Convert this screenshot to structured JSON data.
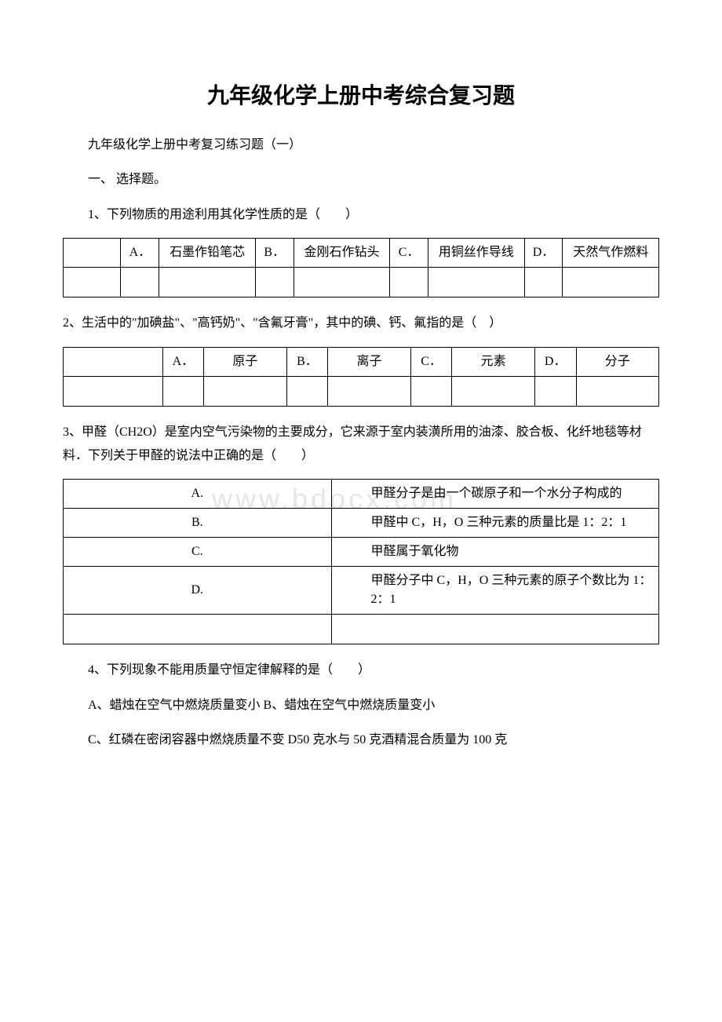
{
  "title": "九年级化学上册中考综合复习题",
  "subtitle": "九年级化学上册中考复习练习题（一）",
  "section1": "一、 选择题。",
  "q1": "1、下列物质的用途利用其化学性质的是（　　）",
  "q1_table": {
    "options": [
      {
        "label": "A．",
        "text": "石墨作铅笔芯"
      },
      {
        "label": "B．",
        "text": "金刚石作钻头"
      },
      {
        "label": "C．",
        "text": "用铜丝作导线"
      },
      {
        "label": "D．",
        "text": "天然气作燃料"
      }
    ]
  },
  "q2": "2、生活中的\"加碘盐\"、\"高钙奶\"、\"含氟牙膏\"，其中的碘、钙、氟指的是（　）",
  "q2_table": {
    "options": [
      {
        "label": "A．",
        "text": "原子"
      },
      {
        "label": "B．",
        "text": "离子"
      },
      {
        "label": "C．",
        "text": "元素"
      },
      {
        "label": "D．",
        "text": "分子"
      }
    ]
  },
  "q3": "3、甲醛（CH2O）是室内空气污染物的主要成分，它来源于室内装潢所用的油漆、胶合板、化纤地毯等材料．下列关于甲醛的说法中正确的是（　　）",
  "q3_table": {
    "rows": [
      {
        "label": "A.",
        "text": "甲醛分子是由一个碳原子和一个水分子构成的"
      },
      {
        "label": "B.",
        "text": "甲醛中 C，H，O 三种元素的质量比是 1：2：1"
      },
      {
        "label": "C.",
        "text": "甲醛属于氧化物"
      },
      {
        "label": "D.",
        "text": "甲醛分子中 C，H，O 三种元素的原子个数比为 1：2：1"
      }
    ]
  },
  "q4": "4、下列现象不能用质量守恒定律解释的是（　　）",
  "q4_a": "A、蜡烛在空气中燃烧质量变小 B、蜡烛在空气中燃烧质量变小",
  "q4_c": "C、红磷在密闭容器中燃烧质量不变 D50 克水与 50 克酒精混合质量为 100 克",
  "watermark": "www.bdocx.com"
}
